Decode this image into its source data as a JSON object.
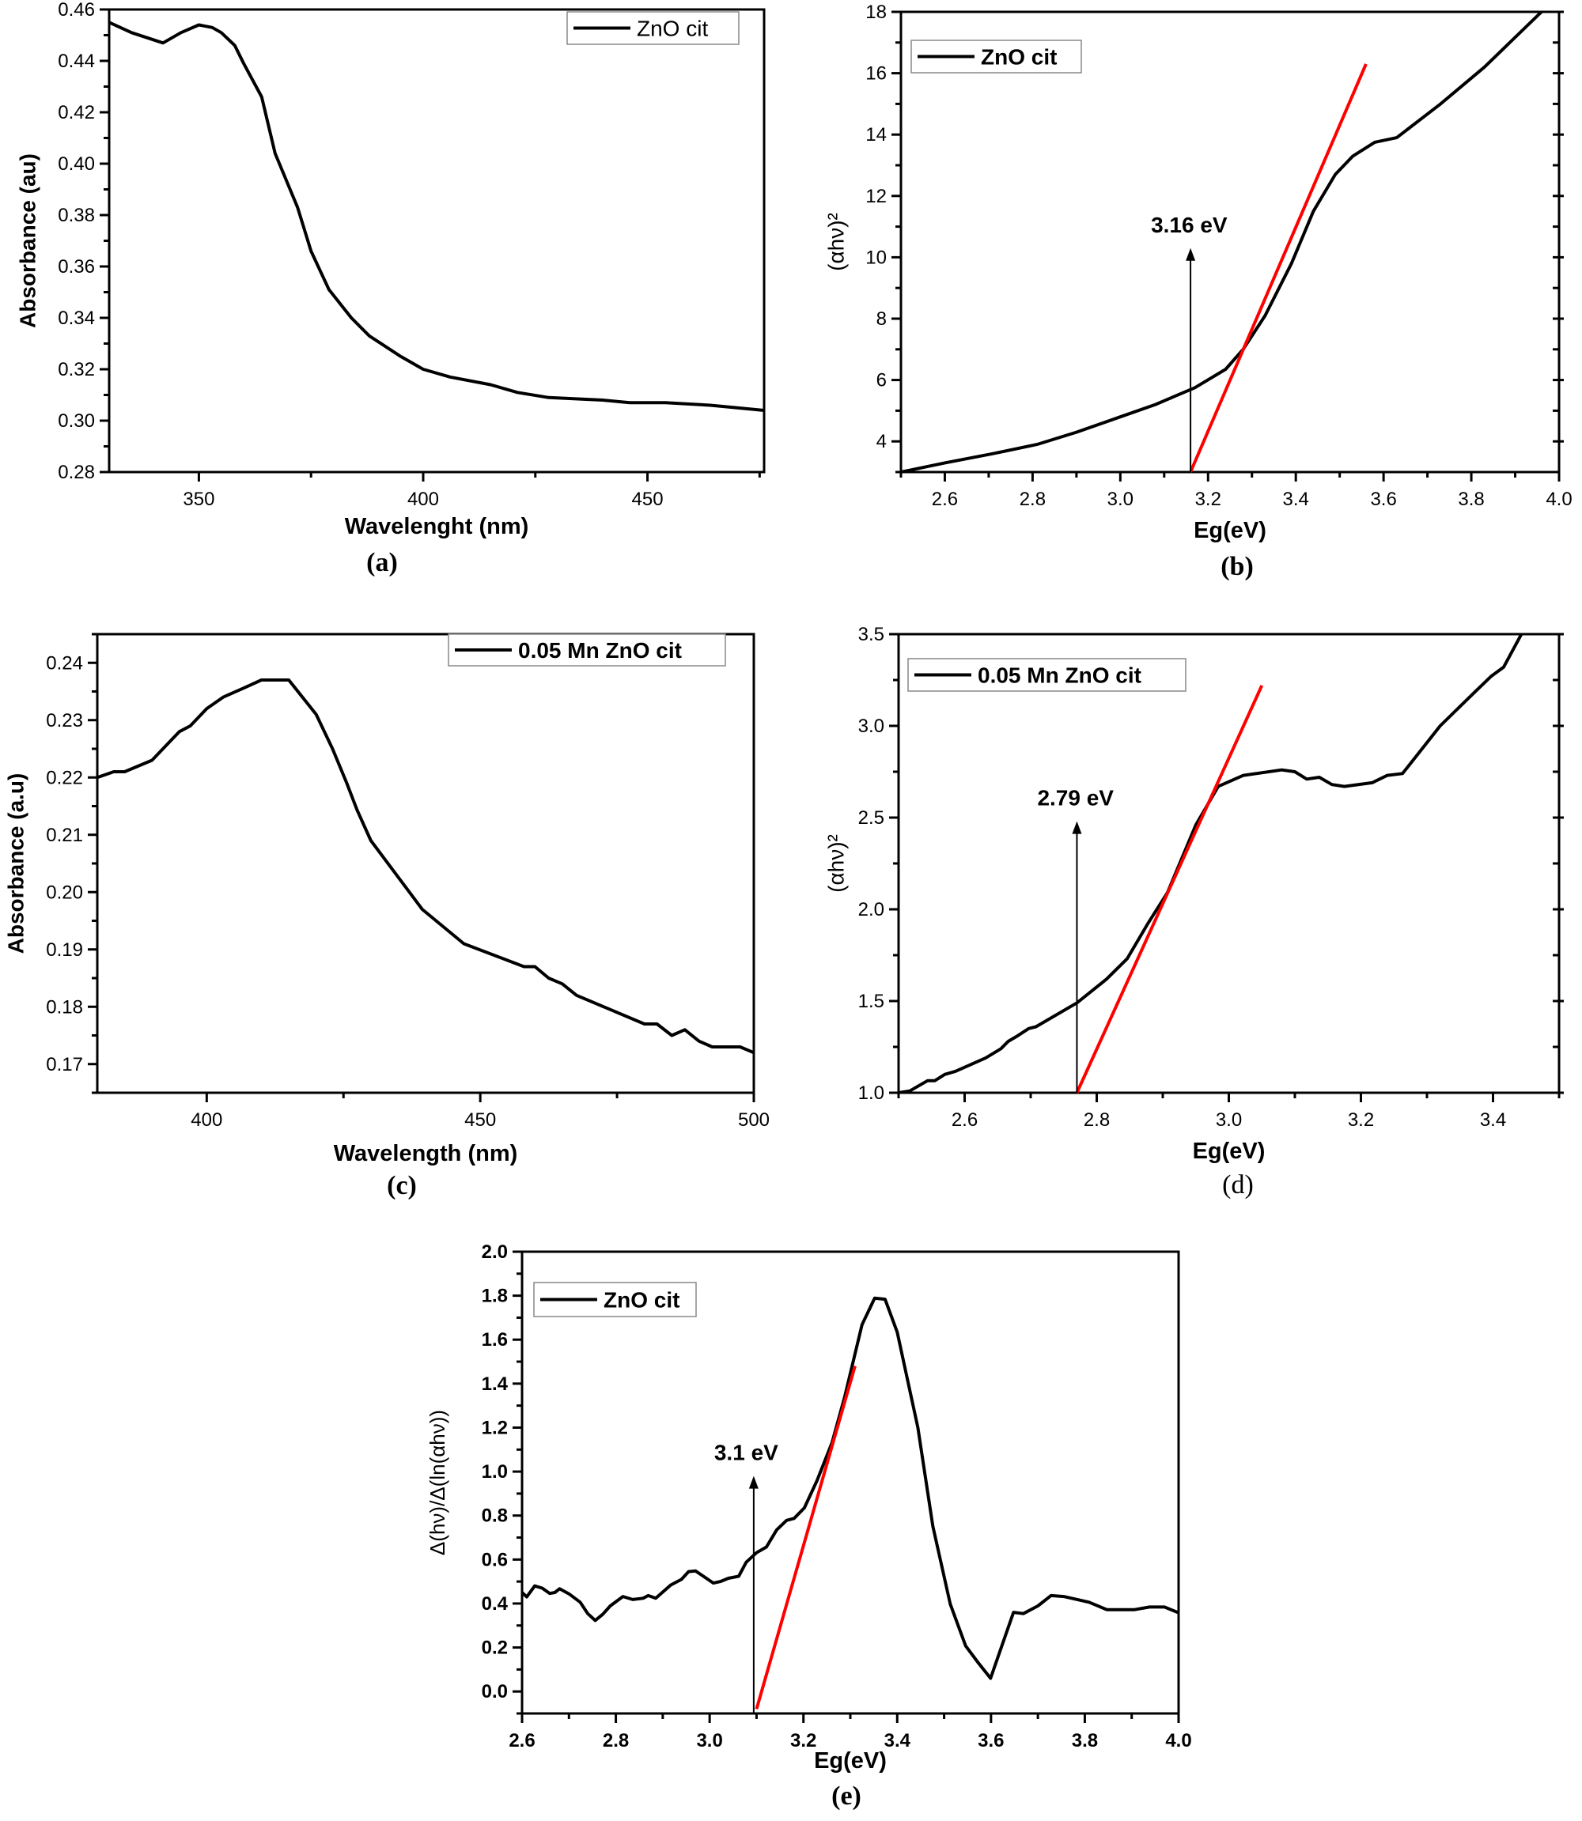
{
  "chart_data": [
    {
      "id": "a",
      "type": "line",
      "panel_label": "(a)",
      "xlabel": "Wavelenght (nm)",
      "ylabel": "Absorbance (au)",
      "xlim": [
        330,
        476
      ],
      "ylim": [
        0.28,
        0.46
      ],
      "xticks": [
        "350",
        "400",
        "450"
      ],
      "yticks": [
        "0.28",
        "0.30",
        "0.32",
        "0.34",
        "0.36",
        "0.38",
        "0.40",
        "0.42",
        "0.44",
        "0.46"
      ],
      "grid": false,
      "legend": {
        "label": "ZnO cit",
        "placement": "top-right"
      },
      "series": [
        {
          "name": "ZnO cit",
          "color": "#000000",
          "x": [
            330,
            335,
            342,
            346,
            350,
            353,
            355,
            358,
            360,
            364,
            367,
            372,
            375,
            379,
            384,
            388,
            395,
            400,
            406,
            415,
            421,
            428,
            440,
            446,
            454,
            464,
            476
          ],
          "y": [
            0.455,
            0.451,
            0.447,
            0.451,
            0.454,
            0.453,
            0.451,
            0.446,
            0.439,
            0.426,
            0.404,
            0.383,
            0.366,
            0.351,
            0.34,
            0.333,
            0.325,
            0.32,
            0.317,
            0.314,
            0.311,
            0.309,
            0.308,
            0.307,
            0.307,
            0.306,
            0.304
          ]
        }
      ]
    },
    {
      "id": "b",
      "type": "line",
      "panel_label": "(b)",
      "xlabel": "Eg(eV)",
      "ylabel": "(αhν)²",
      "xlim": [
        2.5,
        4.0
      ],
      "ylim": [
        3,
        18
      ],
      "xticks": [
        "2.6",
        "2.8",
        "3.0",
        "3.2",
        "3.4",
        "3.6",
        "3.8",
        "4.0"
      ],
      "yticks": [
        "4",
        "6",
        "8",
        "10",
        "12",
        "14",
        "16",
        "18"
      ],
      "grid": false,
      "legend": {
        "label": "ZnO cit",
        "placement": "top-left"
      },
      "series": [
        {
          "name": "ZnO cit",
          "color": "#000000",
          "x": [
            2.5,
            2.6,
            2.71,
            2.81,
            2.9,
            3.0,
            3.08,
            3.17,
            3.24,
            3.28,
            3.33,
            3.39,
            3.44,
            3.49,
            3.53,
            3.58,
            3.63,
            3.73,
            3.83,
            3.96
          ],
          "y": [
            3.0,
            3.3,
            3.6,
            3.9,
            4.3,
            4.8,
            5.2,
            5.75,
            6.35,
            7.0,
            8.1,
            9.8,
            11.5,
            12.7,
            13.3,
            13.75,
            13.9,
            15.0,
            16.2,
            18.0
          ]
        }
      ],
      "fit_line": {
        "color": "#ff0000",
        "x": [
          3.16,
          3.56
        ],
        "y": [
          3.0,
          16.3
        ]
      },
      "annotation": {
        "text": "3.16 eV",
        "x": 3.16,
        "y_from": 3.0,
        "y_to": 10.3
      }
    },
    {
      "id": "c",
      "type": "line",
      "panel_label": "(c)",
      "xlabel": "Wavelength (nm)",
      "ylabel": "Absorbance (a.u)",
      "xlim": [
        380,
        500
      ],
      "ylim": [
        0.165,
        0.245
      ],
      "xticks": [
        "400",
        "450",
        "500"
      ],
      "yticks": [
        "0.17",
        "0.18",
        "0.19",
        "0.20",
        "0.21",
        "0.22",
        "0.23",
        "0.24"
      ],
      "grid": false,
      "legend": {
        "label": "0.05 Mn ZnO cit",
        "placement": "top-right"
      },
      "series": [
        {
          "name": "0.05 Mn ZnO cit",
          "color": "#000000",
          "x": [
            380,
            383,
            385,
            390,
            392,
            395,
            397,
            400,
            403,
            407,
            410,
            415,
            420,
            423,
            425.6,
            427.5,
            430,
            439.4,
            447,
            458,
            460,
            462.5,
            465,
            467.6,
            480,
            482.3,
            485,
            487.4,
            490,
            492.4,
            497.5,
            500
          ],
          "y": [
            0.22,
            0.221,
            0.221,
            0.223,
            0.225,
            0.228,
            0.229,
            0.232,
            0.234,
            0.2357,
            0.237,
            0.237,
            0.231,
            0.225,
            0.219,
            0.2143,
            0.209,
            0.197,
            0.191,
            0.187,
            0.187,
            0.185,
            0.184,
            0.182,
            0.177,
            0.177,
            0.175,
            0.176,
            0.174,
            0.173,
            0.173,
            0.172
          ]
        }
      ]
    },
    {
      "id": "d",
      "type": "line",
      "panel_label": "(d)",
      "xlabel": "Eg(eV)",
      "ylabel": "(αhν)²",
      "xlim": [
        2.5,
        3.5
      ],
      "ylim": [
        1.0,
        3.5
      ],
      "xticks": [
        "2.6",
        "2.8",
        "3.0",
        "3.2",
        "3.4"
      ],
      "yticks": [
        "1.0",
        "1.5",
        "2.0",
        "2.5",
        "3.0",
        "3.5"
      ],
      "grid": false,
      "legend": {
        "label": "0.05 Mn ZnO cit",
        "placement": "top-left"
      },
      "series": [
        {
          "name": "0.05 Mn ZnO cit",
          "color": "#000000",
          "x": [
            2.5,
            2.517,
            2.544,
            2.555,
            2.57,
            2.586,
            2.632,
            2.655,
            2.666,
            2.68,
            2.697,
            2.708,
            2.77,
            2.815,
            2.846,
            2.877,
            2.907,
            2.95,
            2.984,
            3.022,
            3.08,
            3.1,
            3.118,
            3.137,
            3.156,
            3.175,
            3.217,
            3.24,
            3.263,
            3.32,
            3.374,
            3.397,
            3.416,
            3.443
          ],
          "y": [
            1.0,
            1.01,
            1.066,
            1.066,
            1.1,
            1.117,
            1.19,
            1.24,
            1.28,
            1.31,
            1.35,
            1.36,
            1.49,
            1.62,
            1.73,
            1.92,
            2.09,
            2.46,
            2.67,
            2.73,
            2.76,
            2.75,
            2.71,
            2.72,
            2.68,
            2.67,
            2.69,
            2.73,
            2.74,
            3.0,
            3.19,
            3.27,
            3.32,
            3.5
          ]
        }
      ],
      "fit_line": {
        "color": "#ff0000",
        "x": [
          2.77,
          3.05
        ],
        "y": [
          1.0,
          3.22
        ]
      },
      "annotation": {
        "text": "2.79 eV",
        "x": 2.77,
        "y_from": 1.0,
        "y_to": 2.48
      }
    },
    {
      "id": "e",
      "type": "line",
      "panel_label": "(e)",
      "xlabel": "Eg(eV)",
      "ylabel": "Δ(hν)/Δ(ln(αhν))",
      "xlim": [
        2.6,
        4.0
      ],
      "ylim": [
        -0.1,
        2.0
      ],
      "xticks": [
        "2.6",
        "2.8",
        "3.0",
        "3.2",
        "3.4",
        "3.6",
        "3.8",
        "4.0"
      ],
      "yticks": [
        "0.0",
        "0.2",
        "0.4",
        "0.6",
        "0.8",
        "1.0",
        "1.2",
        "1.4",
        "1.6",
        "1.8",
        "2.0"
      ],
      "grid": false,
      "legend": {
        "label": "ZnO cit",
        "placement": "top-left"
      },
      "series": [
        {
          "name": "ZnO cit",
          "color": "#000000",
          "x": [
            2.6,
            2.61,
            2.627,
            2.643,
            2.659,
            2.67,
            2.68,
            2.7,
            2.724,
            2.74,
            2.756,
            2.772,
            2.788,
            2.815,
            2.836,
            2.858,
            2.869,
            2.885,
            2.917,
            2.94,
            2.955,
            2.97,
            3.008,
            3.024,
            3.04,
            3.062,
            3.078,
            3.1,
            3.121,
            3.143,
            3.164,
            3.18,
            3.202,
            3.229,
            3.261,
            3.288,
            3.325,
            3.352,
            3.374,
            3.4,
            3.444,
            3.476,
            3.513,
            3.546,
            3.573,
            3.599,
            3.648,
            3.669,
            3.7,
            3.728,
            3.755,
            3.809,
            3.847,
            3.906,
            3.938,
            3.97,
            4.0
          ],
          "y": [
            0.45,
            0.43,
            0.48,
            0.47,
            0.446,
            0.45,
            0.467,
            0.444,
            0.406,
            0.354,
            0.323,
            0.351,
            0.389,
            0.432,
            0.418,
            0.424,
            0.436,
            0.424,
            0.484,
            0.51,
            0.545,
            0.548,
            0.493,
            0.501,
            0.515,
            0.524,
            0.588,
            0.631,
            0.657,
            0.735,
            0.778,
            0.787,
            0.835,
            0.959,
            1.132,
            1.34,
            1.668,
            1.789,
            1.784,
            1.634,
            1.2,
            0.752,
            0.398,
            0.207,
            0.13,
            0.06,
            0.36,
            0.354,
            0.389,
            0.436,
            0.432,
            0.406,
            0.372,
            0.372,
            0.384,
            0.384,
            0.358
          ]
        }
      ],
      "fit_line": {
        "color": "#ff0000",
        "x": [
          3.1,
          3.31
        ],
        "y": [
          -0.08,
          1.48
        ]
      },
      "annotation": {
        "text": "3.1 eV",
        "x": 3.094,
        "y_from": -0.1,
        "y_to": 0.98
      }
    }
  ]
}
